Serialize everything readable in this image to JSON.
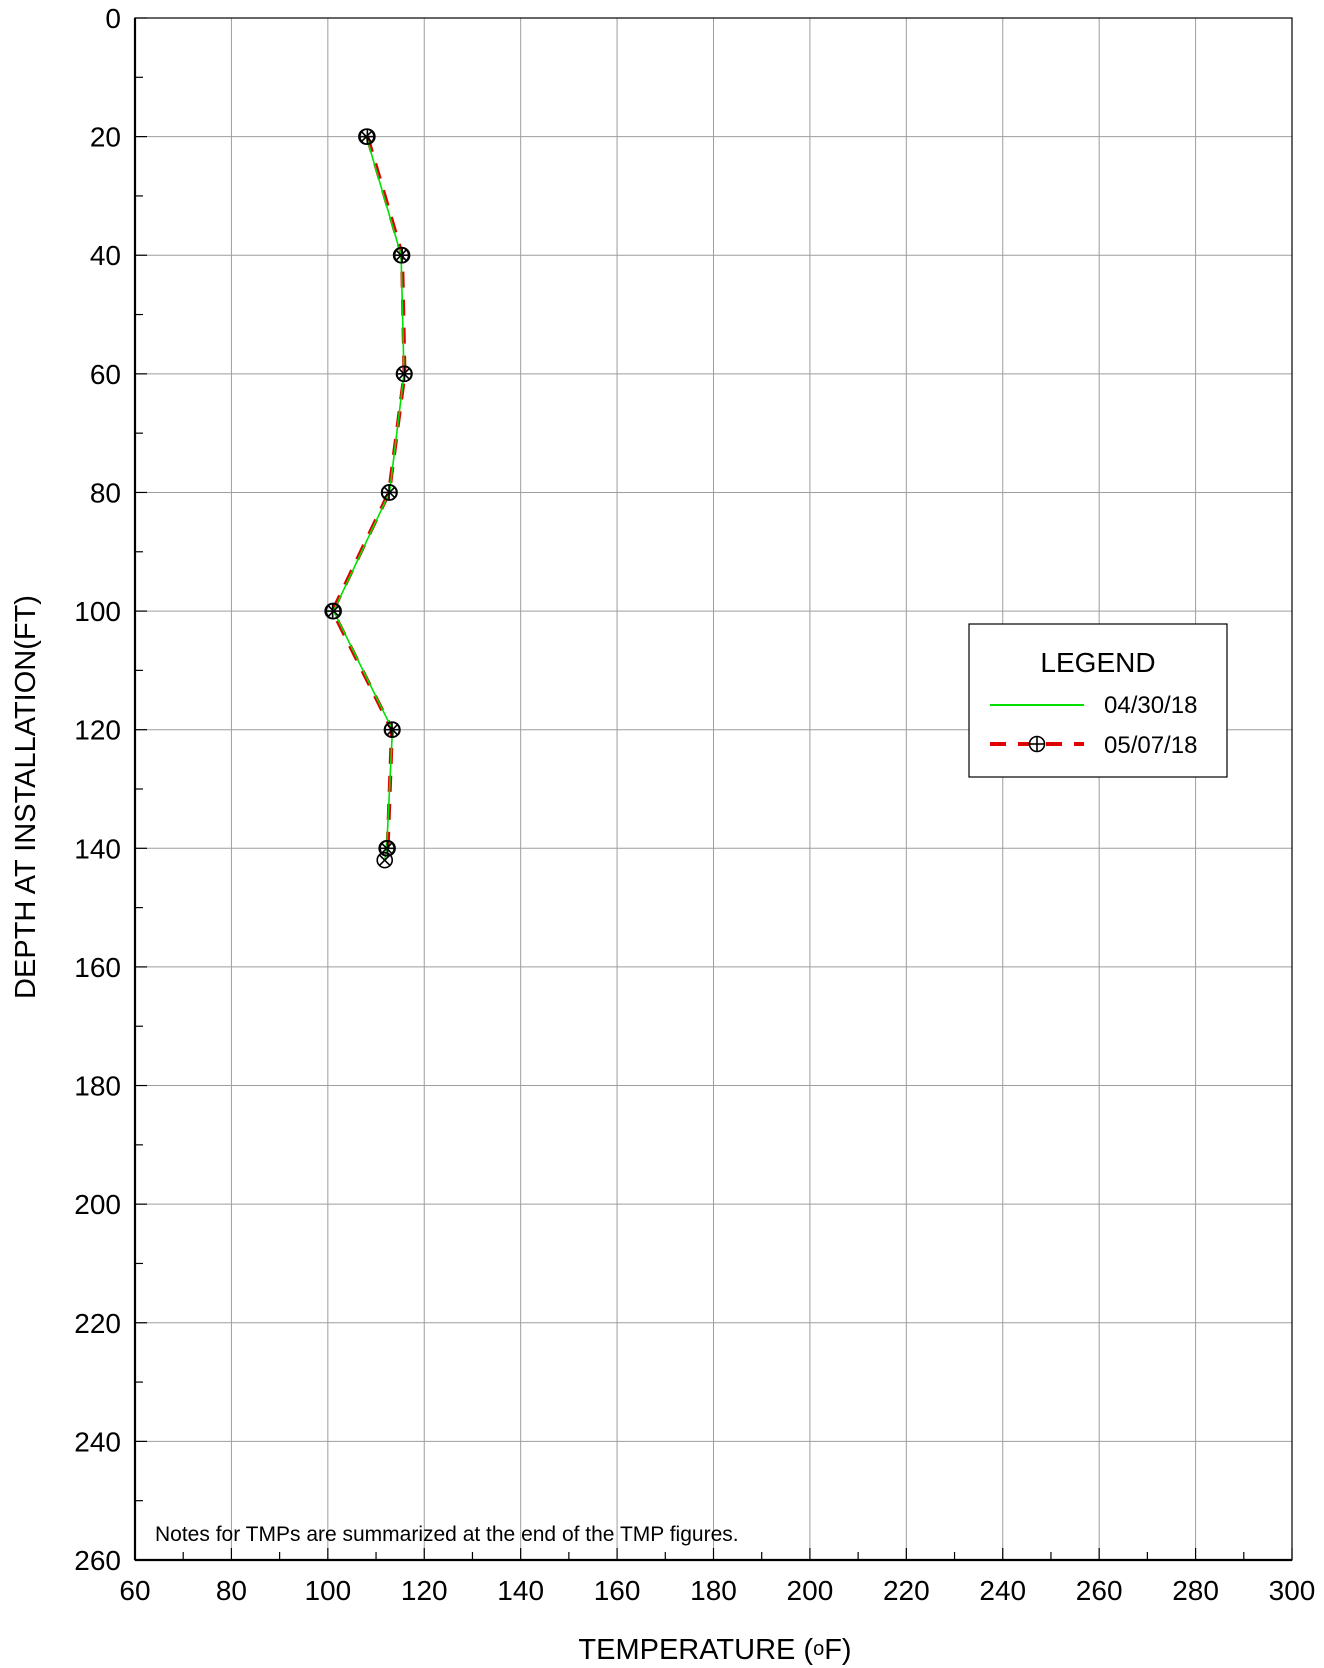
{
  "chart_data": {
    "type": "line",
    "xlabel": "TEMPERATURE (",
    "xlabel_unit_super": "o",
    "xlabel_unit": "F)",
    "ylabel": "DEPTH AT INSTALLATION(FT)",
    "xlim": [
      60,
      300
    ],
    "ylim": [
      0,
      260
    ],
    "y_inverted": true,
    "x_ticks": [
      60,
      80,
      100,
      120,
      140,
      160,
      180,
      200,
      220,
      240,
      260,
      280,
      300
    ],
    "y_ticks": [
      0,
      20,
      40,
      60,
      80,
      100,
      120,
      140,
      160,
      180,
      200,
      220,
      240,
      260
    ],
    "grid": true,
    "legend": {
      "title": "LEGEND",
      "placement": "right",
      "entries": [
        "04/30/18",
        "05/07/18"
      ]
    },
    "series": [
      {
        "name": "04/30/18",
        "color": "#00e000",
        "style": "solid",
        "marker": "x-circle",
        "points": [
          {
            "x": 108,
            "y": 20
          },
          {
            "x": 115.2,
            "y": 40
          },
          {
            "x": 115.8,
            "y": 60
          },
          {
            "x": 112.8,
            "y": 80
          },
          {
            "x": 101.2,
            "y": 100
          },
          {
            "x": 113.4,
            "y": 120
          },
          {
            "x": 112.2,
            "y": 140
          },
          {
            "x": 111.8,
            "y": 142
          }
        ]
      },
      {
        "name": "05/07/18",
        "color": "#e00000",
        "style": "dashed",
        "marker": "plus-circle",
        "points": [
          {
            "x": 108.2,
            "y": 20
          },
          {
            "x": 115.4,
            "y": 40
          },
          {
            "x": 115.9,
            "y": 60
          },
          {
            "x": 112.7,
            "y": 80
          },
          {
            "x": 101.0,
            "y": 100
          },
          {
            "x": 113.3,
            "y": 120
          },
          {
            "x": 112.4,
            "y": 140
          }
        ]
      }
    ],
    "note": "Notes for TMPs are summarized at the end of the TMP figures."
  }
}
